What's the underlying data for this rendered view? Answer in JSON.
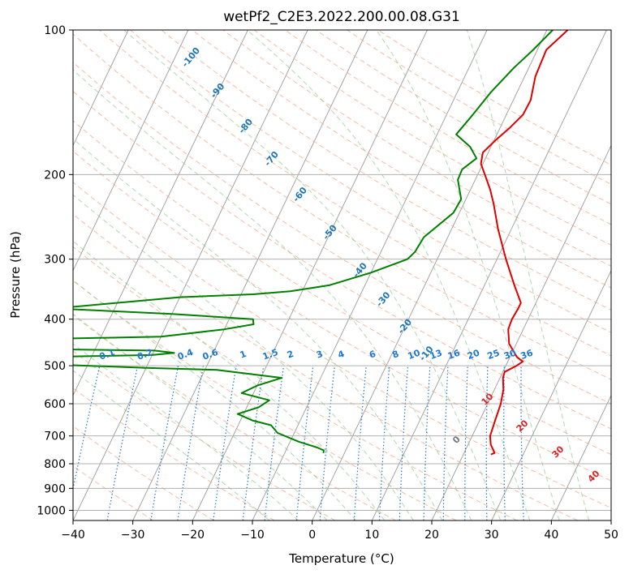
{
  "chart_data": {
    "type": "line",
    "title": "wetPf2_C2E3.2022.200.00.08.G31",
    "xlabel": "Temperature (°C)",
    "ylabel": "Pressure (hPa)",
    "xlim": [
      -40,
      50
    ],
    "ylim": [
      1050,
      100
    ],
    "y_scale": "log",
    "x_ticks": [
      -40,
      -30,
      -20,
      -10,
      0,
      10,
      20,
      30,
      40,
      50
    ],
    "x_tick_labels": [
      "−40",
      "−30",
      "−20",
      "−10",
      "0",
      "10",
      "20",
      "30",
      "40",
      "50"
    ],
    "y_ticks": [
      100,
      200,
      300,
      400,
      500,
      600,
      700,
      800,
      900,
      1000
    ],
    "y_tick_labels": [
      "100",
      "200",
      "300",
      "400",
      "500",
      "600",
      "700",
      "800",
      "900",
      "1000"
    ],
    "grid": true,
    "colors": {
      "temperature": "#e00000",
      "dewpoint": "#008000",
      "isotherm": "#9a9a9a",
      "dry_adiabat": "#f4a582",
      "moist_adiabat": "#8fc98f",
      "mixing_ratio": "#1e78d2",
      "grid": "#b0b0b0",
      "label_blue": "#1f77b4",
      "label_red": "#d62728",
      "label_grey": "#777777"
    },
    "series": [
      {
        "kind": "temperature",
        "points": [
          {
            "p": 100,
            "t": 3.5
          },
          {
            "p": 110,
            "t": 1.5
          },
          {
            "p": 125,
            "t": 1.8
          },
          {
            "p": 140,
            "t": 2.9
          },
          {
            "p": 150,
            "t": 2.8
          },
          {
            "p": 160,
            "t": 1.6
          },
          {
            "p": 170,
            "t": 0.2
          },
          {
            "p": 180,
            "t": -0.9
          },
          {
            "p": 190,
            "t": -0.3
          },
          {
            "p": 200,
            "t": 1.2
          },
          {
            "p": 215,
            "t": 3.3
          },
          {
            "p": 230,
            "t": 5.0
          },
          {
            "p": 260,
            "t": 7.8
          },
          {
            "p": 300,
            "t": 11.5
          },
          {
            "p": 340,
            "t": 15.0
          },
          {
            "p": 370,
            "t": 17.5
          },
          {
            "p": 380,
            "t": 17.5
          },
          {
            "p": 400,
            "t": 17.3
          },
          {
            "p": 420,
            "t": 17.5
          },
          {
            "p": 450,
            "t": 18.8
          },
          {
            "p": 480,
            "t": 21.2
          },
          {
            "p": 490,
            "t": 22.5
          },
          {
            "p": 500,
            "t": 21.8
          },
          {
            "p": 515,
            "t": 20.3
          },
          {
            "p": 530,
            "t": 20.5
          },
          {
            "p": 560,
            "t": 21.5
          },
          {
            "p": 600,
            "t": 22.2
          },
          {
            "p": 650,
            "t": 22.6
          },
          {
            "p": 700,
            "t": 23.0
          },
          {
            "p": 730,
            "t": 23.8
          },
          {
            "p": 750,
            "t": 24.7
          },
          {
            "p": 760,
            "t": 25.1
          },
          {
            "p": 765,
            "t": 24.6
          }
        ]
      },
      {
        "kind": "dewpoint",
        "points": [
          {
            "p": 100,
            "t": 1.0
          },
          {
            "p": 110,
            "t": -0.7
          },
          {
            "p": 120,
            "t": -2.5
          },
          {
            "p": 135,
            "t": -4.4
          },
          {
            "p": 150,
            "t": -5.6
          },
          {
            "p": 165,
            "t": -6.8
          },
          {
            "p": 175,
            "t": -3.5
          },
          {
            "p": 185,
            "t": -1.5
          },
          {
            "p": 195,
            "t": -3.0
          },
          {
            "p": 205,
            "t": -2.9
          },
          {
            "p": 225,
            "t": -0.8
          },
          {
            "p": 240,
            "t": -1.0
          },
          {
            "p": 270,
            "t": -4.0
          },
          {
            "p": 290,
            "t": -4.3
          },
          {
            "p": 300,
            "t": -5.0
          },
          {
            "p": 320,
            "t": -10.0
          },
          {
            "p": 340,
            "t": -16.0
          },
          {
            "p": 350,
            "t": -22.0
          },
          {
            "p": 355,
            "t": -28.0
          },
          {
            "p": 360,
            "t": -40.0
          },
          {
            "p": 380,
            "t": -60.0
          },
          {
            "p": 390,
            "t": -40.0
          },
          {
            "p": 400,
            "t": -26.0
          },
          {
            "p": 410,
            "t": -25.5
          },
          {
            "p": 420,
            "t": -30.0
          },
          {
            "p": 435,
            "t": -40.0
          },
          {
            "p": 440,
            "t": -60.0
          },
          {
            "p": 460,
            "t": -70.0
          },
          {
            "p": 465,
            "t": -40.0
          },
          {
            "p": 470,
            "t": -36.5
          },
          {
            "p": 475,
            "t": -40.0
          },
          {
            "p": 480,
            "t": -60.0
          },
          {
            "p": 495,
            "t": -60.0
          },
          {
            "p": 505,
            "t": -40.0
          },
          {
            "p": 510,
            "t": -28.0
          },
          {
            "p": 530,
            "t": -16.5
          },
          {
            "p": 550,
            "t": -20.0
          },
          {
            "p": 570,
            "t": -22.0
          },
          {
            "p": 590,
            "t": -16.8
          },
          {
            "p": 610,
            "t": -18.0
          },
          {
            "p": 630,
            "t": -21.0
          },
          {
            "p": 650,
            "t": -18.0
          },
          {
            "p": 665,
            "t": -14.5
          },
          {
            "p": 690,
            "t": -12.8
          },
          {
            "p": 720,
            "t": -8.5
          },
          {
            "p": 740,
            "t": -5.0
          },
          {
            "p": 750,
            "t": -3.7
          },
          {
            "p": 760,
            "t": -3.5
          }
        ]
      }
    ],
    "dry_adiabat_labels": [
      {
        "text": "-100",
        "p": 115
      },
      {
        "text": "-90",
        "p": 135
      },
      {
        "text": "-80",
        "p": 160
      },
      {
        "text": "-70",
        "p": 187
      },
      {
        "text": "-60",
        "p": 222
      },
      {
        "text": "-50",
        "p": 266
      },
      {
        "text": "-40",
        "p": 319
      },
      {
        "text": "-30",
        "p": 367
      },
      {
        "text": "-20",
        "p": 418
      },
      {
        "text": "-10",
        "p": 476
      }
    ],
    "mixing_ratio_labels": [
      "0.1",
      "0.2",
      "0.4",
      "0.6",
      "1",
      "1.5",
      "2",
      "3",
      "4",
      "6",
      "8",
      "10",
      "13",
      "16",
      "20",
      "25",
      "30",
      "36"
    ],
    "moist_adiabat_labels": [
      "0",
      "10",
      "20",
      "30",
      "40"
    ]
  }
}
